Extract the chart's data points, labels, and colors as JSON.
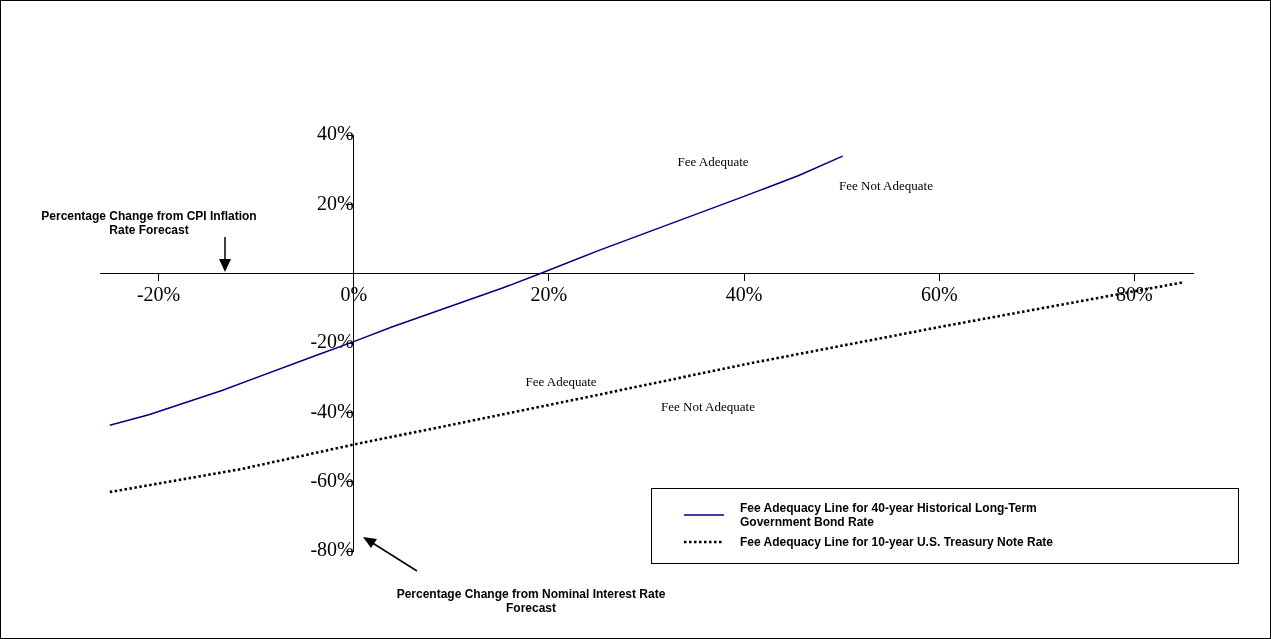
{
  "chart_data": {
    "type": "line",
    "xlabel": "Percentage Change from CPI Inflation Rate Forecast",
    "xlim": [
      -26,
      86
    ],
    "ylim": [
      -80,
      40
    ],
    "xticks": [
      {
        "value": -20,
        "label": "-20%"
      },
      {
        "value": 0,
        "label": "0%"
      },
      {
        "value": 20,
        "label": "20%"
      },
      {
        "value": 40,
        "label": "40%"
      },
      {
        "value": 60,
        "label": "60%"
      },
      {
        "value": 80,
        "label": "80%"
      }
    ],
    "yticks": [
      {
        "value": -80,
        "label": "-80%"
      },
      {
        "value": -60,
        "label": "-60%"
      },
      {
        "value": -40,
        "label": "-40%"
      },
      {
        "value": -20,
        "label": "-20%"
      },
      {
        "value": 0,
        "label": null
      },
      {
        "value": 20,
        "label": "20%"
      },
      {
        "value": 40,
        "label": "40%"
      }
    ],
    "grid": false,
    "legend": "bottom right",
    "marker": "none",
    "series": [
      {
        "name": "Fee Adequacy Line for 40-year Historical Long-Term Government Bond Rate",
        "color": "#000080",
        "line_style": "solid",
        "x": [
          -25,
          -21,
          -13.5,
          -3.6,
          0,
          3.9,
          15.1,
          19,
          25.2,
          40.2,
          45.6,
          50.1
        ],
        "values": [
          -43.7,
          -40.7,
          -33.7,
          -23.3,
          -19.6,
          -15.4,
          -4.3,
          -0.1,
          6.8,
          22.5,
          28.3,
          33.9
        ]
      },
      {
        "name": "Fee Adequacy Line for 10-year U.S. Treasury Note Rate",
        "color": "#000000",
        "line_style": "dotted",
        "x": [
          -25,
          -11.6,
          0,
          20,
          40,
          60,
          85
        ],
        "values": [
          -63,
          -56.4,
          -49.3,
          -37.9,
          -26.2,
          -15.4,
          -2.5
        ]
      }
    ],
    "annotations": [
      "Fee Adequate",
      "Fee Not Adequate",
      "Fee Adequate",
      "Fee Not Adequate",
      "Percentage Change from Nominal Interest Rate Forecast"
    ]
  }
}
